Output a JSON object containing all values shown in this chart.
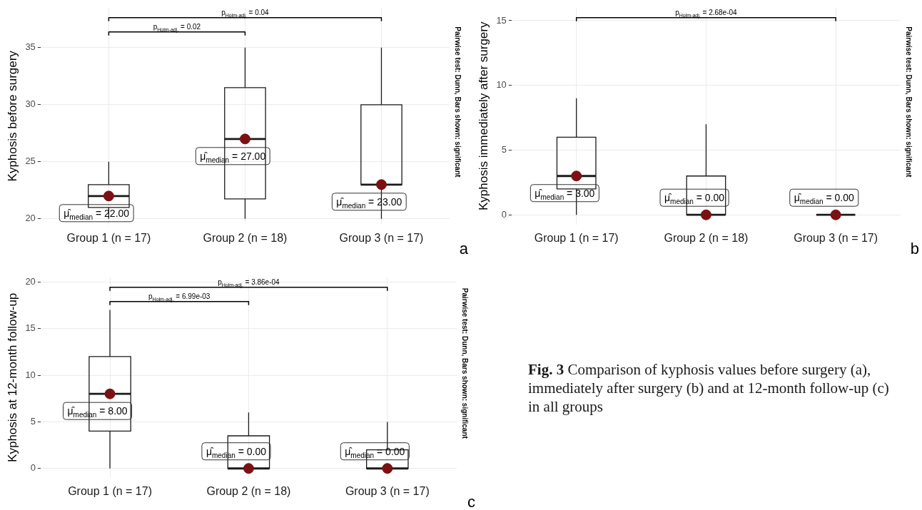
{
  "chart_data": [
    {
      "type": "box",
      "ylabel": "Kyphosis before surgery",
      "categories": [
        "Group 1 (n = 17)",
        "Group 2 (n = 18)",
        "Group 3 (n = 17)"
      ],
      "boxes": [
        {
          "low": 20,
          "q1": 21,
          "median": 22,
          "q3": 23,
          "high": 25
        },
        {
          "low": 20,
          "q1": 21.75,
          "median": 27,
          "q3": 31.5,
          "high": 35
        },
        {
          "low": 20,
          "q1": 23,
          "median": 23,
          "q3": 30,
          "high": 35
        }
      ],
      "series": [
        {
          "type": "scatter",
          "x": [
            "Group 1 (n = 17)",
            "Group 2 (n = 18)",
            "Group 3 (n = 17)"
          ],
          "values": [
            22,
            27,
            23
          ],
          "color": "#7b1113",
          "marker": "circle",
          "value_labels": [
            "μ̂$_{median}$ = 22.00",
            "μ̂$_{median}$ = 27.00",
            "μ̂$_{median}$ = 23.00"
          ]
        }
      ],
      "ylim": [
        19.5,
        38.5
      ],
      "yticks": [
        20,
        25,
        30,
        35
      ],
      "grid": true,
      "legend": false,
      "color": "#1a1a1a",
      "annotations": [
        "Pairwise test: Dunn, Bars shown: significant",
        "a",
        "p$_{Holm-adj.}$ = 0.02",
        "p$_{Holm-adj.}$ = 0.04"
      ]
    },
    {
      "type": "box",
      "ylabel": "Kyphosis immediately after surgery",
      "categories": [
        "Group 1 (n = 17)",
        "Group 2 (n = 18)",
        "Group 3 (n = 17)"
      ],
      "boxes": [
        {
          "low": 0,
          "q1": 2,
          "median": 3,
          "q3": 6,
          "high": 9
        },
        {
          "low": 0,
          "q1": 0,
          "median": 0,
          "q3": 3,
          "high": 7
        },
        {
          "low": 0,
          "q1": 0,
          "median": 0,
          "q3": 0,
          "high": 0
        }
      ],
      "series": [
        {
          "type": "scatter",
          "x": [
            "Group 1 (n = 17)",
            "Group 2 (n = 18)",
            "Group 3 (n = 17)"
          ],
          "values": [
            3,
            0,
            0
          ],
          "color": "#7b1113",
          "marker": "circle",
          "value_labels": [
            "μ̂$_{median}$ = 3.00",
            "μ̂$_{median}$ = 0.00",
            "μ̂$_{median}$ = 0.00"
          ]
        }
      ],
      "ylim": [
        -0.75,
        16
      ],
      "yticks": [
        0,
        5,
        10,
        15
      ],
      "grid": true,
      "legend": false,
      "color": "#1a1a1a",
      "annotations": [
        "Pairwise test: Dunn, Bars shown: significant",
        "b",
        "p$_{Holm-adj.}$ = 2.68e-04"
      ]
    },
    {
      "type": "box",
      "ylabel": "Kyphosis at 12-month follow-up",
      "categories": [
        "Group 1 (n = 17)",
        "Group 2 (n = 18)",
        "Group 3 (n = 17)"
      ],
      "boxes": [
        {
          "low": 0,
          "q1": 4,
          "median": 8,
          "q3": 12,
          "high": 17
        },
        {
          "low": 0,
          "q1": 0,
          "median": 0,
          "q3": 3.5,
          "high": 6
        },
        {
          "low": 0,
          "q1": 0,
          "median": 0,
          "q3": 2,
          "high": 5
        }
      ],
      "series": [
        {
          "type": "scatter",
          "x": [
            "Group 1 (n = 17)",
            "Group 2 (n = 18)",
            "Group 3 (n = 17)"
          ],
          "values": [
            8,
            0,
            0
          ],
          "color": "#7b1113",
          "marker": "circle",
          "value_labels": [
            "μ̂$_{median}$ = 8.00",
            "μ̂$_{median}$ = 0.00",
            "μ̂$_{median}$ = 0.00"
          ]
        }
      ],
      "ylim": [
        -1,
        20.5
      ],
      "yticks": [
        0,
        5,
        10,
        15,
        20
      ],
      "grid": true,
      "legend": false,
      "color": "#1a1a1a",
      "annotations": [
        "Pairwise test: Dunn, Bars shown: significant",
        "c",
        "p$_{Holm-adj.}$ = 6.99e-03",
        "p$_{Holm-adj.}$ = 3.86e-04"
      ]
    },
    {
      "type": "other",
      "annotations": [
        "Fig. 3",
        "Comparison of kyphosis values before surgery (a), immediately after surgery (b) and at 12-month follow-up (c) in all groups"
      ]
    }
  ]
}
